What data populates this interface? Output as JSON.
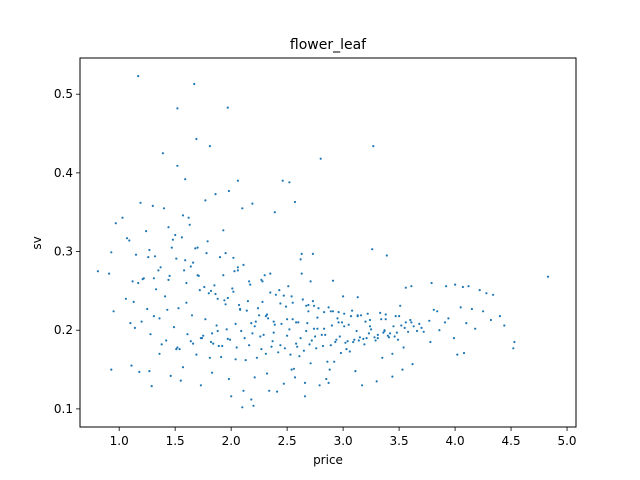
{
  "chart_data": {
    "type": "scatter",
    "title": "flower_leaf",
    "xlabel": "price",
    "ylabel": "sv",
    "xlim": [
      0.65,
      5.08
    ],
    "ylim": [
      0.077,
      0.546
    ],
    "x_ticks": [
      1.0,
      1.5,
      2.0,
      2.5,
      3.0,
      3.5,
      4.0,
      4.5,
      5.0
    ],
    "x_tick_labels": [
      "1.0",
      "1.5",
      "2.0",
      "2.5",
      "3.0",
      "3.5",
      "4.0",
      "4.5",
      "5.0"
    ],
    "y_ticks": [
      0.1,
      0.2,
      0.3,
      0.4,
      0.5
    ],
    "y_tick_labels": [
      "0.1",
      "0.2",
      "0.3",
      "0.4",
      "0.5"
    ],
    "grid": false,
    "legend": "none",
    "marker_color": "#1f77b4",
    "series": [
      {
        "x": [
          1.17,
          1.67,
          1.52,
          1.97,
          1.69,
          1.81,
          1.52,
          1.39,
          2.8,
          3.27,
          1.59,
          1.98,
          2.06,
          2.46,
          2.52,
          2.19,
          2.1,
          1.77,
          1.86,
          1.3,
          1.19,
          1.03,
          0.81,
          0.91,
          0.93,
          0.97,
          1.07,
          1.09,
          1.15,
          1.27,
          1.44,
          1.57,
          1.62,
          1.7,
          1.93,
          2.02,
          2.06,
          2.39,
          2.57,
          2.63,
          2.73,
          2.63,
          2.71,
          2.91,
          3.0,
          3.13,
          3.26,
          3.39,
          3.56,
          3.61,
          3.79,
          3.92,
          4.0,
          4.07,
          4.12,
          4.22,
          4.28,
          4.34,
          4.53,
          4.83,
          4.52,
          4.08,
          4.02,
          3.99,
          3.91,
          3.78,
          3.61,
          3.5,
          3.38,
          3.24,
          3.15,
          3.05,
          2.96,
          2.87,
          2.77,
          2.69,
          2.58,
          2.49,
          2.4,
          2.31,
          2.24,
          2.15,
          2.08,
          2.02,
          1.95,
          1.88,
          1.82,
          1.76,
          1.7,
          1.64,
          1.58,
          1.51,
          1.44,
          1.37,
          1.31,
          1.26,
          1.21,
          1.17,
          1.12,
          1.06,
          0.95,
          0.93,
          1.18,
          1.29,
          1.46,
          1.55,
          1.73,
          1.98,
          2.11,
          2.21,
          2.32,
          2.54,
          2.66,
          2.79,
          2.92,
          3.06,
          3.11,
          3.17,
          3.44,
          3.54,
          2.0,
          2.1,
          2.41,
          2.66,
          2.85,
          2.88,
          3.35,
          1.38,
          1.52,
          1.64,
          1.75,
          1.83,
          1.89,
          1.99,
          2.12,
          2.26,
          2.37,
          2.44,
          2.58,
          2.75,
          2.81,
          2.94,
          3.09,
          3.21,
          3.31,
          3.41,
          3.49,
          3.63,
          3.77,
          3.86,
          3.94,
          4.1,
          4.18,
          4.25,
          4.32,
          4.44,
          2.2,
          2.18,
          2.34,
          2.47,
          2.56,
          2.61,
          2.71,
          2.86,
          2.98,
          3.03,
          3.19,
          3.29,
          3.36,
          3.46,
          3.58,
          3.7,
          1.48,
          1.56,
          1.66,
          1.78,
          1.93,
          2.03,
          2.17,
          2.28,
          2.35,
          2.43,
          2.54,
          2.64,
          2.74,
          2.83,
          2.95,
          3.07,
          3.22,
          3.34,
          3.47,
          3.56,
          1.35,
          1.45,
          1.6,
          1.72,
          1.86,
          1.94,
          2.07,
          2.14,
          2.25,
          2.33,
          2.45,
          2.55,
          2.68,
          2.77,
          2.9,
          3.01,
          3.12,
          3.25,
          3.37,
          3.52,
          1.22,
          1.33,
          1.41,
          1.53,
          1.65,
          1.77,
          1.87,
          1.96,
          2.09,
          2.19,
          2.29,
          2.38,
          2.5,
          2.62,
          2.72,
          2.84,
          2.97,
          3.1,
          3.23,
          3.4,
          1.13,
          1.25,
          1.36,
          1.49,
          1.61,
          1.74,
          1.84,
          1.92,
          2.05,
          2.16,
          2.27,
          2.36,
          2.48,
          2.59,
          2.7,
          2.82,
          2.93,
          3.04,
          3.18,
          3.31,
          1.14,
          1.28,
          1.42,
          1.54,
          1.69,
          1.81,
          1.91,
          2.04,
          2.13,
          2.23,
          2.31,
          2.42,
          2.53,
          2.65,
          2.76,
          2.89,
          3.02,
          3.14,
          3.28,
          3.42,
          1.32,
          1.47,
          1.59,
          1.71,
          1.85,
          1.97,
          2.08,
          2.22,
          2.39,
          2.52,
          2.67,
          2.83,
          2.99,
          3.16,
          3.33,
          3.51,
          1.4,
          1.63,
          1.79,
          1.95,
          2.11,
          2.3,
          2.51,
          2.73,
          2.96,
          3.2,
          3.45,
          3.68,
          3.84,
          4.05,
          1.24,
          1.5,
          1.68,
          1.9,
          2.06,
          2.27,
          2.47,
          2.69,
          2.91,
          3.13,
          3.38,
          3.6,
          3.81,
          4.15,
          4.4,
          3.62,
          3.53,
          3.44,
          3.3,
          2.87,
          2.57,
          1.83,
          1.57,
          1.27,
          1.11,
          2.62,
          2.35,
          2.16,
          2.01,
          1.8,
          1.6,
          1.43,
          1.31,
          1.2,
          1.1,
          3.08,
          3.24,
          3.13,
          3.01,
          2.89,
          2.78,
          2.67,
          2.55,
          2.44,
          2.28,
          3.37,
          3.48,
          3.55,
          3.66,
          3.72,
          2.21,
          2.38,
          2.5,
          2.6,
          2.74,
          1.73,
          1.88,
          2.04,
          2.18,
          2.32,
          1.36,
          1.51,
          1.66,
          1.82,
          1.97
        ],
        "y": [
          0.523,
          0.513,
          0.482,
          0.483,
          0.443,
          0.434,
          0.409,
          0.425,
          0.418,
          0.434,
          0.392,
          0.377,
          0.39,
          0.39,
          0.388,
          0.361,
          0.355,
          0.365,
          0.373,
          0.358,
          0.362,
          0.343,
          0.275,
          0.272,
          0.299,
          0.336,
          0.317,
          0.314,
          0.296,
          0.302,
          0.331,
          0.346,
          0.343,
          0.305,
          0.327,
          0.292,
          0.28,
          0.35,
          0.363,
          0.297,
          0.297,
          0.272,
          0.262,
          0.263,
          0.243,
          0.242,
          0.303,
          0.295,
          0.254,
          0.256,
          0.26,
          0.256,
          0.258,
          0.255,
          0.256,
          0.251,
          0.247,
          0.245,
          0.185,
          0.268,
          0.177,
          0.171,
          0.169,
          0.19,
          0.21,
          0.185,
          0.21,
          0.218,
          0.22,
          0.205,
          0.191,
          0.207,
          0.21,
          0.229,
          0.216,
          0.224,
          0.21,
          0.23,
          0.245,
          0.218,
          0.228,
          0.237,
          0.227,
          0.249,
          0.233,
          0.24,
          0.25,
          0.255,
          0.27,
          0.281,
          0.276,
          0.291,
          0.264,
          0.28,
          0.266,
          0.293,
          0.265,
          0.26,
          0.262,
          0.24,
          0.224,
          0.15,
          0.147,
          0.129,
          0.142,
          0.136,
          0.13,
          0.138,
          0.123,
          0.14,
          0.145,
          0.15,
          0.133,
          0.13,
          0.16,
          0.173,
          0.148,
          0.13,
          0.17,
          0.178,
          0.116,
          0.102,
          0.122,
          0.116,
          0.138,
          0.15,
          0.165,
          0.182,
          0.178,
          0.186,
          0.193,
          0.196,
          0.18,
          0.188,
          0.19,
          0.192,
          0.186,
          0.181,
          0.183,
          0.192,
          0.194,
          0.188,
          0.185,
          0.19,
          0.194,
          0.191,
          0.188,
          0.205,
          0.212,
          0.2,
          0.215,
          0.209,
          0.202,
          0.224,
          0.213,
          0.206,
          0.104,
          0.112,
          0.123,
          0.132,
          0.151,
          0.167,
          0.158,
          0.16,
          0.171,
          0.176,
          0.182,
          0.187,
          0.197,
          0.192,
          0.198,
          0.203,
          0.315,
          0.318,
          0.286,
          0.298,
          0.27,
          0.275,
          0.258,
          0.262,
          0.248,
          0.251,
          0.243,
          0.239,
          0.231,
          0.223,
          0.215,
          0.218,
          0.221,
          0.214,
          0.218,
          0.21,
          0.276,
          0.269,
          0.26,
          0.251,
          0.246,
          0.238,
          0.232,
          0.225,
          0.219,
          0.215,
          0.208,
          0.214,
          0.209,
          0.202,
          0.206,
          0.205,
          0.199,
          0.201,
          0.199,
          0.206,
          0.266,
          0.252,
          0.243,
          0.228,
          0.219,
          0.214,
          0.206,
          0.201,
          0.199,
          0.196,
          0.194,
          0.197,
          0.193,
          0.19,
          0.187,
          0.194,
          0.192,
          0.188,
          0.196,
          0.193,
          0.236,
          0.227,
          0.215,
          0.204,
          0.195,
          0.19,
          0.183,
          0.18,
          0.178,
          0.181,
          0.176,
          0.179,
          0.177,
          0.179,
          0.182,
          0.18,
          0.185,
          0.186,
          0.189,
          0.19,
          0.203,
          0.195,
          0.187,
          0.176,
          0.169,
          0.165,
          0.166,
          0.163,
          0.162,
          0.165,
          0.17,
          0.172,
          0.169,
          0.174,
          0.177,
          0.181,
          0.184,
          0.187,
          0.191,
          0.196,
          0.294,
          0.305,
          0.289,
          0.269,
          0.257,
          0.241,
          0.226,
          0.211,
          0.207,
          0.201,
          0.199,
          0.202,
          0.21,
          0.219,
          0.222,
          0.231,
          0.355,
          0.334,
          0.313,
          0.298,
          0.283,
          0.27,
          0.256,
          0.237,
          0.223,
          0.211,
          0.205,
          0.208,
          0.224,
          0.229,
          0.326,
          0.321,
          0.304,
          0.293,
          0.276,
          0.264,
          0.244,
          0.232,
          0.224,
          0.218,
          0.214,
          0.213,
          0.226,
          0.227,
          0.218,
          0.157,
          0.15,
          0.141,
          0.135,
          0.133,
          0.14,
          0.146,
          0.153,
          0.148,
          0.155,
          0.29,
          0.272,
          0.262,
          0.253,
          0.247,
          0.235,
          0.226,
          0.218,
          0.211,
          0.209,
          0.225,
          0.213,
          0.219,
          0.221,
          0.224,
          0.228,
          0.231,
          0.235,
          0.234,
          0.236,
          0.2,
          0.197,
          0.203,
          0.199,
          0.198,
          0.205,
          0.211,
          0.214,
          0.21,
          0.202,
          0.19,
          0.199,
          0.208,
          0.209,
          0.22,
          0.17,
          0.176,
          0.183,
          0.185,
          0.189
        ]
      }
    ]
  }
}
